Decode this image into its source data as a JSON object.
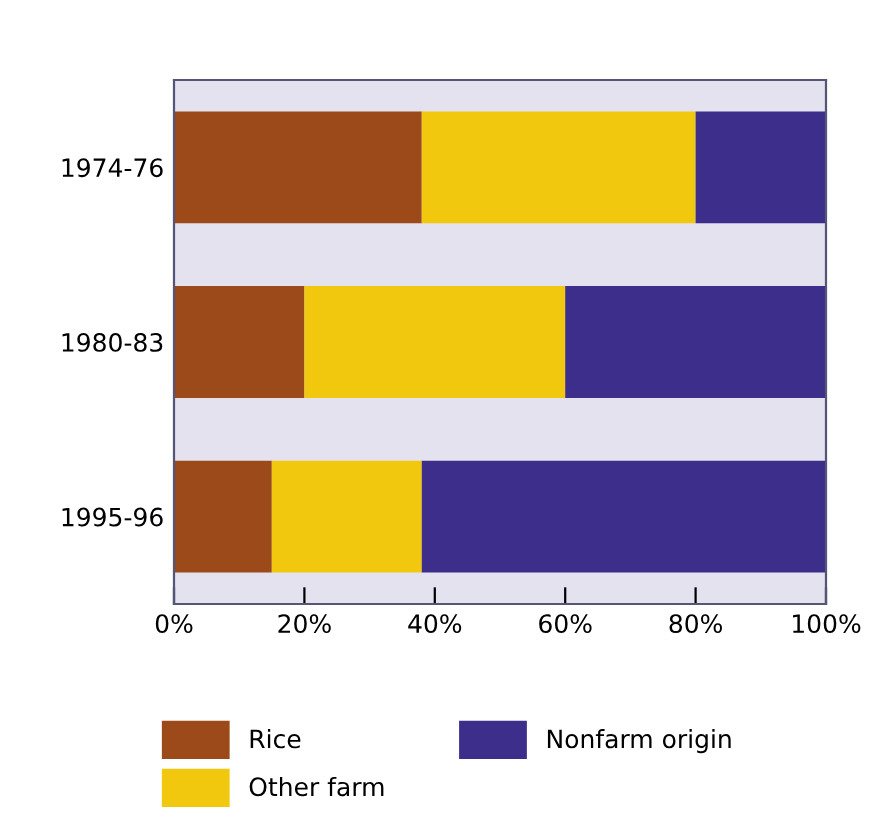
{
  "chart_data": {
    "type": "bar",
    "orientation": "horizontal",
    "stacked": true,
    "categories": [
      "1974-76",
      "1980-83",
      "1995-96"
    ],
    "series": [
      {
        "name": "Rice",
        "color": "#9c4a1a",
        "values": [
          38,
          20,
          15
        ]
      },
      {
        "name": "Other farm",
        "color": "#f2c80f",
        "values": [
          42,
          40,
          23
        ]
      },
      {
        "name": "Nonfarm origin",
        "color": "#3c2e8a",
        "values": [
          20,
          40,
          62
        ]
      }
    ],
    "xlim": [
      0,
      100
    ],
    "xticks": [
      {
        "value": 0,
        "label": "0%"
      },
      {
        "value": 20,
        "label": "20%"
      },
      {
        "value": 40,
        "label": "40%"
      },
      {
        "value": 60,
        "label": "60%"
      },
      {
        "value": 80,
        "label": "80%"
      },
      {
        "value": 100,
        "label": "100%"
      }
    ],
    "grid": false,
    "legend": "bottom"
  }
}
